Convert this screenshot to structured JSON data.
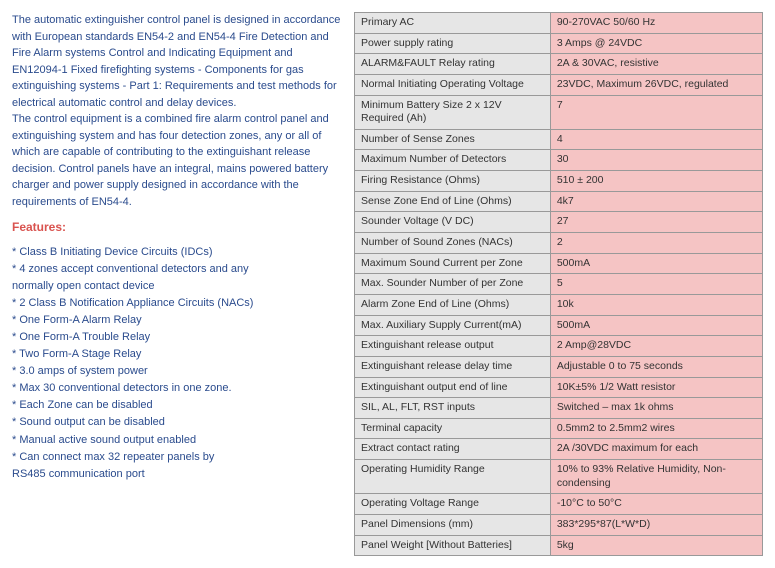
{
  "description": {
    "p1": "The automatic extinguisher control panel is designed in accordance with European standards EN54-2 and  EN54-4 Fire Detection and Fire Alarm systems  Control and Indicating Equipment and EN12094-1  Fixed firefighting systems - Components for gas extinguishing systems - Part 1: Requirements and test methods for electrical automatic control and delay devices.",
    "p2": "The control equipment is a combined fire alarm control panel and extinguishing system and has four detection zones, any or all of which are capable of contributing to the extinguishant release decision. Control panels have an integral, mains powered battery charger and power supply designed in accordance with the requirements of EN54-4."
  },
  "features_heading": "Features:",
  "features": [
    "*  Class B Initiating Device Circuits (IDCs)",
    "*  4 zones accept conventional detectors and any",
    "     normally open contact device",
    "*  2 Class B Notification Appliance Circuits (NACs)",
    "* One Form-A Alarm Relay",
    "* One Form-A Trouble Relay",
    "* Two Form-A Stage Relay",
    "* 3.0 amps of system power",
    "* Max 30 conventional detectors in one zone.",
    "* Each Zone can be disabled",
    "* Sound output can be disabled",
    "* Manual active sound output enabled",
    "* Can connect max 32 repeater panels by",
    "   RS485 communication port"
  ],
  "spec_rows": [
    {
      "label": "Primary AC",
      "value": "90-270VAC 50/60 Hz"
    },
    {
      "label": "Power supply rating",
      "value": "3 Amps @ 24VDC"
    },
    {
      "label": "ALARM&FAULT Relay rating",
      "value": "2A & 30VAC, resistive"
    },
    {
      "label": "Normal Initiating Operating Voltage",
      "value": "23VDC, Maximum 26VDC, regulated"
    },
    {
      "label": "Minimum Battery Size 2 x 12V Required (Ah)",
      "value": "7"
    },
    {
      "label": "Number of Sense Zones",
      "value": "4"
    },
    {
      "label": "Maximum Number of Detectors",
      "value": "30"
    },
    {
      "label": "Firing Resistance (Ohms)",
      "value": "510 ± 200"
    },
    {
      "label": "Sense Zone End of Line (Ohms)",
      "value": "4k7"
    },
    {
      "label": "Sounder Voltage (V DC)",
      "value": "27"
    },
    {
      "label": "Number of Sound Zones (NACs)",
      "value": "2"
    },
    {
      "label": "Maximum Sound Current per Zone",
      "value": "500mA"
    },
    {
      "label": "Max. Sounder Number of per Zone",
      "value": "5"
    },
    {
      "label": "Alarm Zone End of Line (Ohms)",
      "value": "10k"
    },
    {
      "label": "Max. Auxiliary Supply Current(mA)",
      "value": "500mA"
    },
    {
      "label": "Extinguishant release output",
      "value": "2 Amp@28VDC"
    },
    {
      "label": "Extinguishant release delay time",
      "value": "Adjustable 0 to 75 seconds"
    },
    {
      "label": "Extinguishant output end of line",
      "value": "10K±5% 1/2 Watt resistor"
    },
    {
      "label": "SIL, AL, FLT, RST inputs",
      "value": "Switched –  max 1k ohms"
    },
    {
      "label": "Terminal capacity",
      "value": "0.5mm2 to 2.5mm2 wires"
    },
    {
      "label": "Extract contact rating",
      "value": "2A /30VDC maximum for each"
    },
    {
      "label": "Operating Humidity Range",
      "value": "10% to 93% Relative Humidity, Non-condensing"
    },
    {
      "label": "Operating Voltage Range",
      "value": "-10°C to 50°C"
    },
    {
      "label": "Panel Dimensions (mm)",
      "value": "383*295*87(L*W*D)"
    },
    {
      "label": "Panel Weight [Without Batteries]",
      "value": "5kg"
    }
  ],
  "styling": {
    "label_bg": "#e6e6e6",
    "value_bg": "#f5c4c4",
    "border_color": "#999",
    "description_color": "#2a4b8d",
    "heading_color": "#d9534f"
  }
}
